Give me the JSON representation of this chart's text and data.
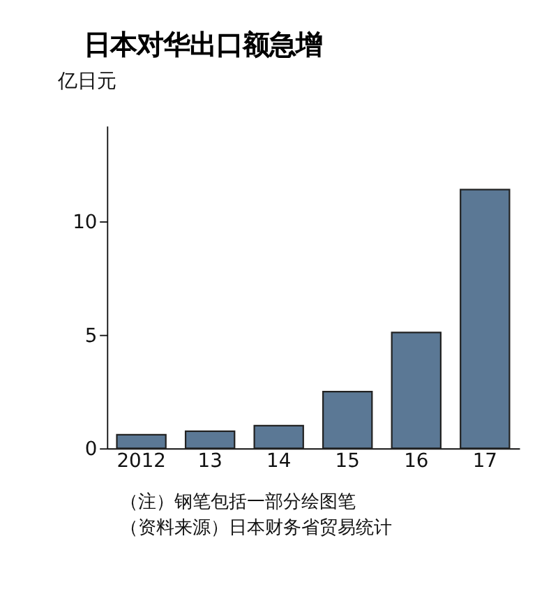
{
  "chart_data": {
    "type": "bar",
    "title": "日本对华出口额急增",
    "ylabel": "亿日元",
    "categories": [
      "2012",
      "13",
      "14",
      "15",
      "16",
      "17"
    ],
    "values": [
      0.6,
      0.75,
      1.0,
      2.5,
      5.1,
      11.4
    ],
    "color": "#5b7895",
    "ylim": [
      0,
      14.2
    ],
    "yticks": [
      0,
      5,
      10
    ],
    "grid": false,
    "legend": false,
    "annotations": [
      "（注）钢笔包括一部分绘图笔",
      "（资料来源）日本财务省贸易统计"
    ]
  }
}
